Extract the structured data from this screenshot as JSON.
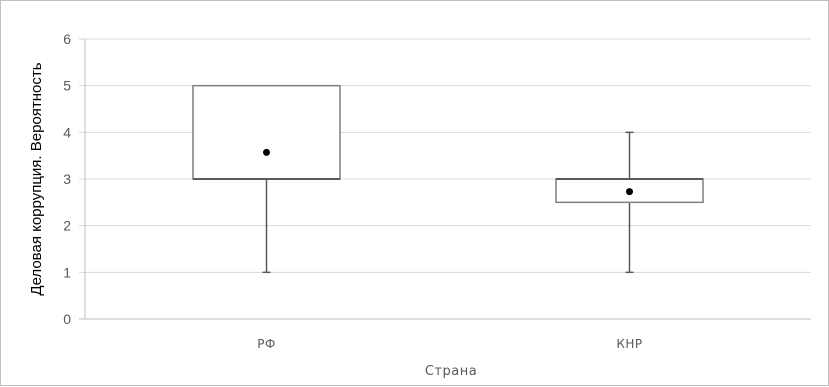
{
  "chart_data": {
    "type": "box",
    "title": "",
    "xlabel": "Страна",
    "ylabel": "Деловая коррупция. Вероятность",
    "ylim": [
      0,
      6
    ],
    "yticks": [
      0,
      1,
      2,
      3,
      4,
      5,
      6
    ],
    "grid": true,
    "legend": "none",
    "categories": [
      "РФ",
      "КНР"
    ],
    "boxes": [
      {
        "category": "РФ",
        "min": 1,
        "q1": 3,
        "median": 3,
        "q3": 5,
        "max": 5,
        "mean": 3.57
      },
      {
        "category": "КНР",
        "min": 1,
        "q1": 2.5,
        "median": 3,
        "q3": 3,
        "max": 4,
        "mean": 2.73
      }
    ]
  }
}
